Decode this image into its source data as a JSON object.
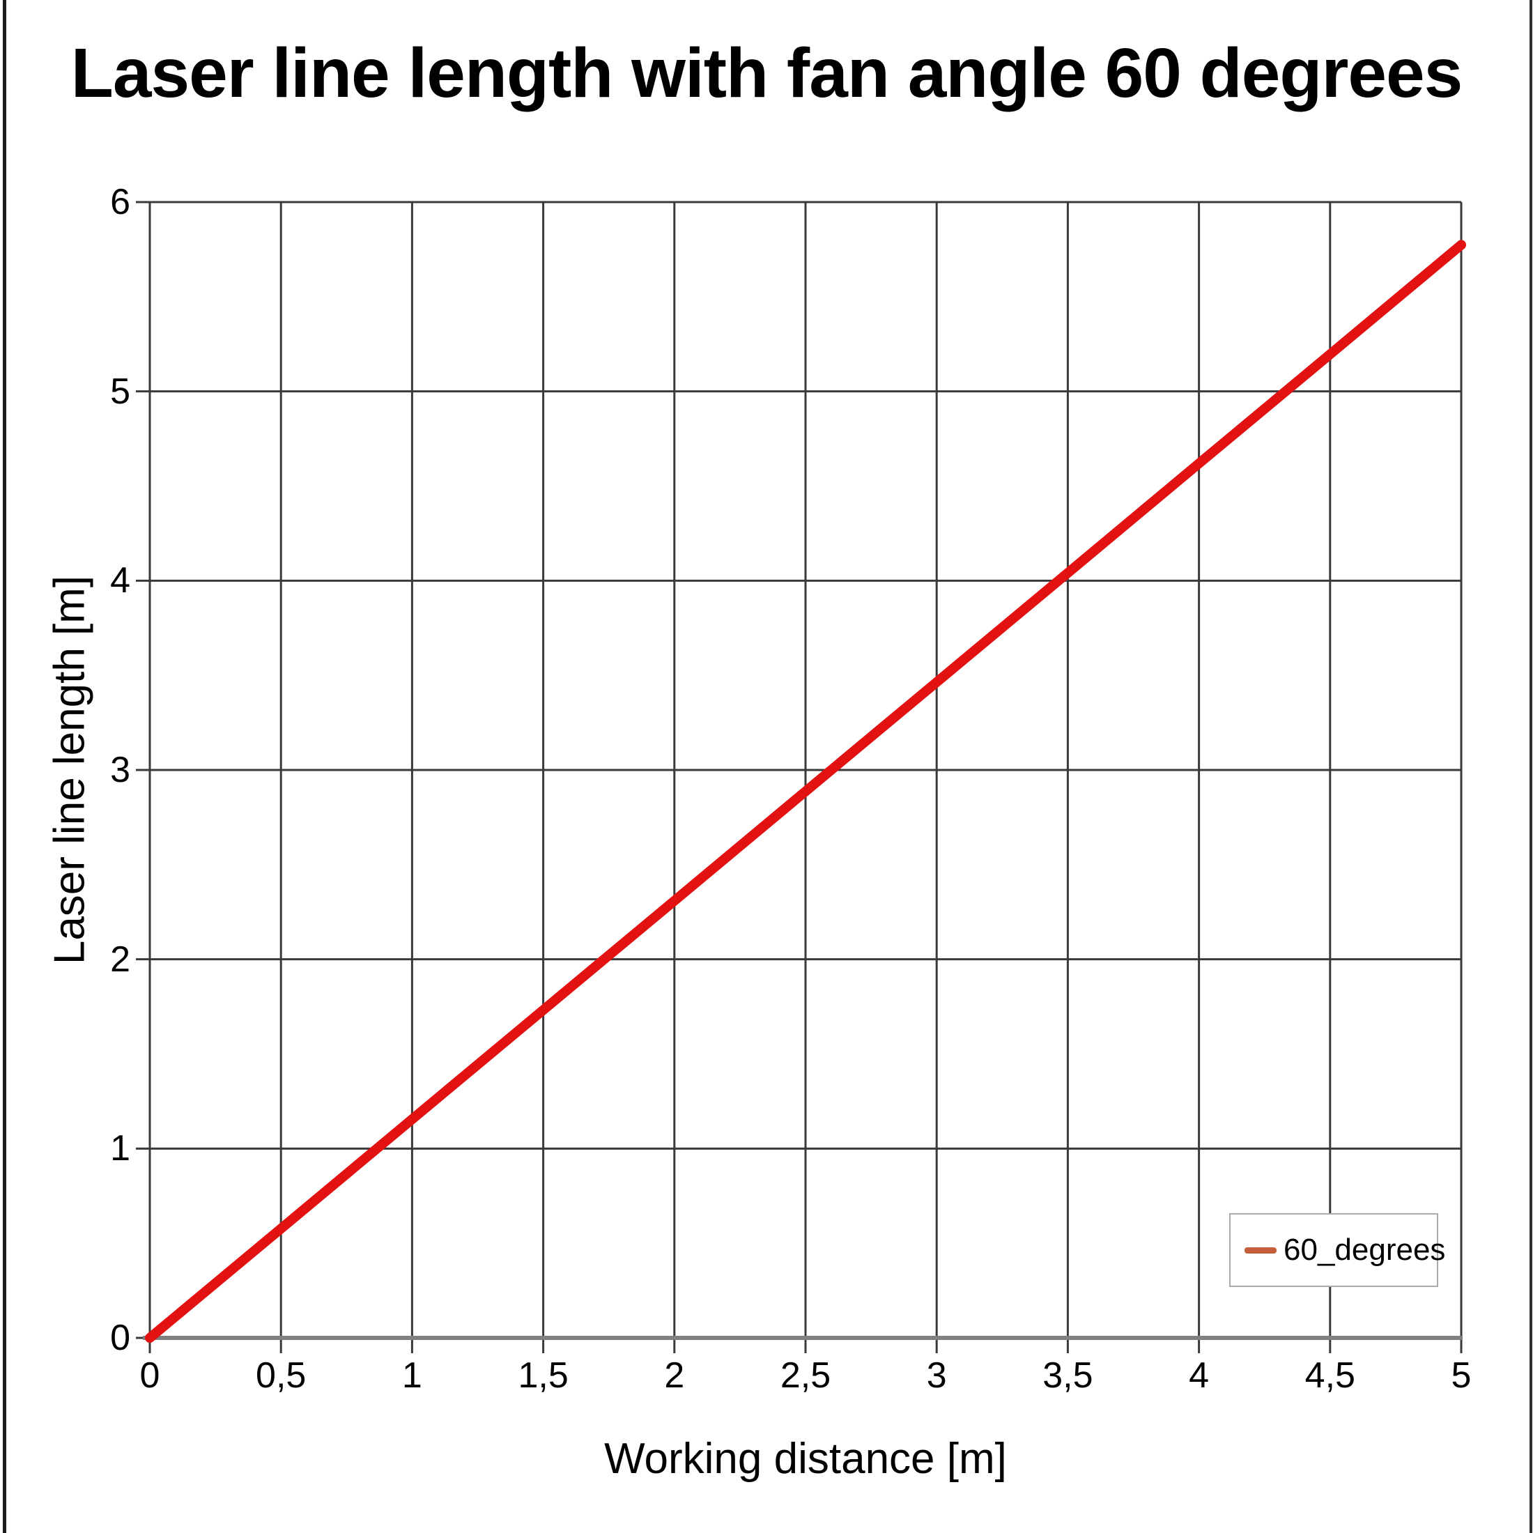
{
  "chart_data": {
    "type": "line",
    "title": "Laser line length with fan angle 60 degrees",
    "xlabel": "Working distance [m]",
    "ylabel": "Laser line length [m]",
    "xlim": [
      0,
      5
    ],
    "ylim": [
      0,
      6
    ],
    "x_ticks": [
      0,
      0.5,
      1,
      1.5,
      2,
      2.5,
      3,
      3.5,
      4,
      4.5,
      5
    ],
    "x_tick_labels": [
      "0",
      "0,5",
      "1",
      "1,5",
      "2",
      "2,5",
      "3",
      "3,5",
      "4",
      "4,5",
      "5"
    ],
    "y_ticks": [
      0,
      1,
      2,
      3,
      4,
      5,
      6
    ],
    "y_tick_labels": [
      "0",
      "1",
      "2",
      "3",
      "4",
      "5",
      "6"
    ],
    "grid": {
      "vertical_every": 0.5,
      "horizontal_every": 1,
      "visible": true
    },
    "series": [
      {
        "name": "60_degrees",
        "color": "#e31212",
        "x": [
          0,
          0.5,
          1,
          1.5,
          2,
          2.5,
          3,
          3.5,
          4,
          4.5,
          5
        ],
        "y": [
          0,
          0.577,
          1.155,
          1.732,
          2.309,
          2.887,
          3.464,
          4.041,
          4.619,
          5.196,
          5.774
        ]
      }
    ],
    "legend": {
      "position": "bottom-right",
      "entries": [
        {
          "label": "60_degrees",
          "marker_color": "#c45f3c"
        }
      ]
    },
    "colors": {
      "grid": "#3a3a3a",
      "axis_line": "#808080",
      "tick_mark": "#3a3a3a",
      "text": "#000000"
    }
  }
}
